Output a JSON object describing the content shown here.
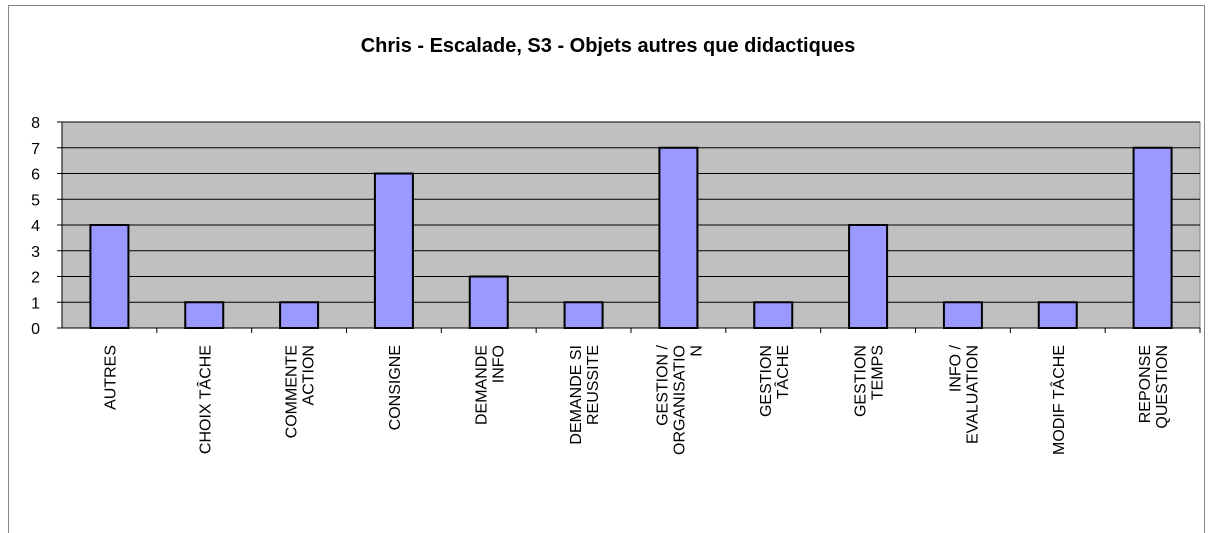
{
  "chart_data": {
    "type": "bar",
    "title": "Chris - Escalade, S3 - Objets autres que didactiques",
    "categories": [
      "AUTRES",
      "CHOIX TÂCHE",
      "COMMENTE ACTION",
      "CONSIGNE",
      "DEMANDE INFO",
      "DEMANDE SI REUSSITE",
      "GESTION / ORGANISATION",
      "GESTION TÂCHE",
      "GESTION TEMPS",
      "INFO / EVALUATION",
      "MODIF TÂCHE",
      "REPONSE QUESTION"
    ],
    "values": [
      4,
      1,
      1,
      6,
      2,
      1,
      7,
      1,
      4,
      1,
      1,
      7
    ],
    "color": "#9999ff",
    "ylim": [
      0,
      8
    ],
    "yticks": [
      0,
      1,
      2,
      3,
      4,
      5,
      6,
      7,
      8
    ],
    "grid": true
  }
}
